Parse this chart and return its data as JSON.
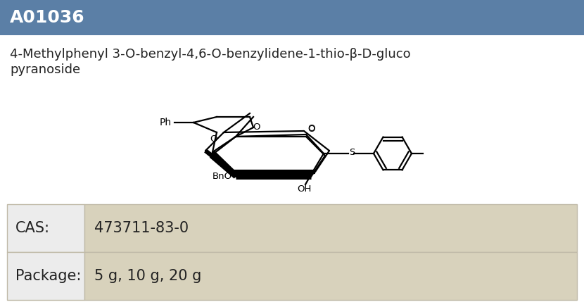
{
  "compound_id": "A01036",
  "compound_name_line1": "4-Methylphenyl 3-O-benzyl-4,6-O-benzylidene-1-thio-β-D-gluco",
  "compound_name_line2": "pyranoside",
  "cas_label": "CAS:",
  "cas_value": "473711-83-0",
  "package_label": "Package:",
  "package_value": "5 g, 10 g, 20 g",
  "header_bg_color": "#5b7fa6",
  "header_text_color": "#ffffff",
  "body_bg_color": "#ffffff",
  "table_label_bg": "#ececec",
  "table_value_bg": "#d8d2bc",
  "table_border_color": "#c0baa8",
  "name_text_color": "#222222",
  "id_fontsize": 18,
  "name_fontsize": 13,
  "table_fontsize": 15
}
